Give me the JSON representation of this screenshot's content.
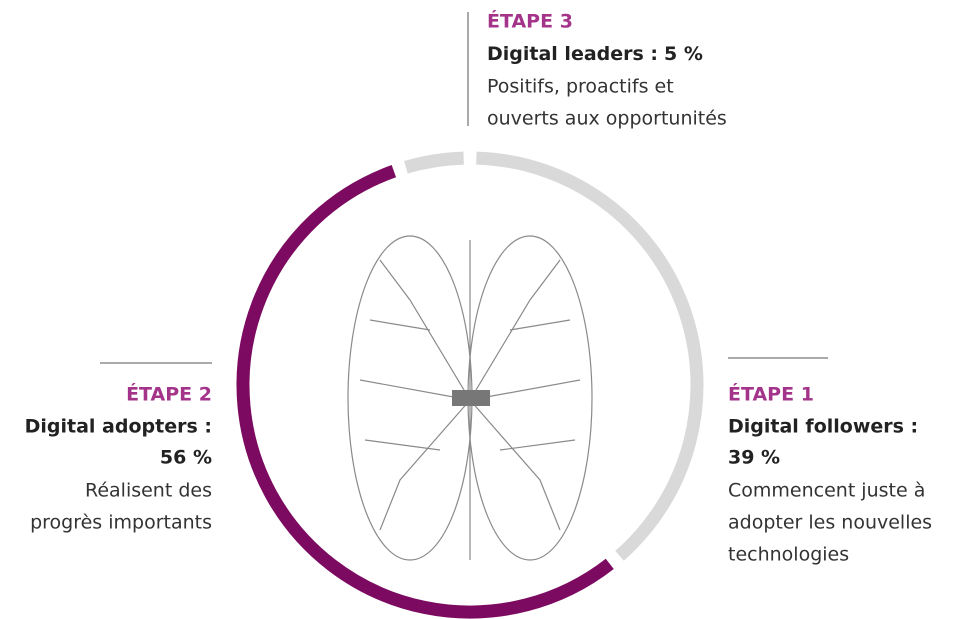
{
  "chart_data": {
    "type": "donut",
    "stages": [
      "ÉTAPE 1",
      "ÉTAPE 2",
      "ÉTAPE 3"
    ],
    "categories": [
      "Digital followers :",
      "Digital adopters :",
      "Digital leaders :"
    ],
    "values": [
      39,
      56,
      5
    ],
    "value_labels": [
      "39 %",
      "56 %",
      "5 %"
    ],
    "descriptions": [
      [
        "Commencent juste à",
        "adopter les nouvelles",
        "technologies"
      ],
      [
        "Réalisent des",
        "progrès importants"
      ],
      [
        "Positifs, proactifs et",
        "ouverts aux opportunités"
      ]
    ],
    "colors": [
      "#d9d9d9",
      "#7b0a60",
      "#d9d9d9"
    ],
    "label_color": "#a4338a"
  }
}
